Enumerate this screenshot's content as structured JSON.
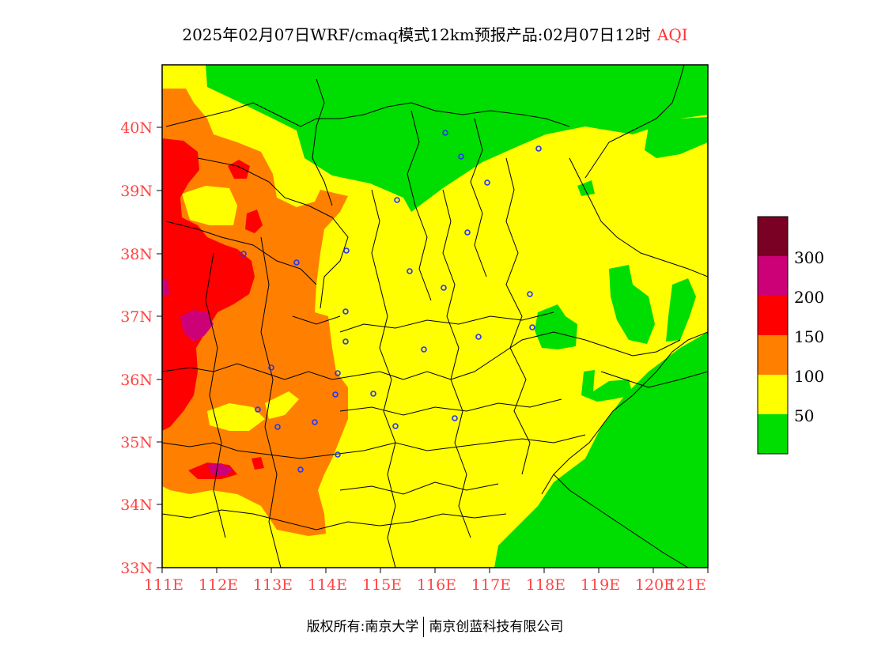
{
  "title": {
    "main": "2025年02月07日WRF/cmaq模式12km预报产品:02月07日12时",
    "tag": "AQI"
  },
  "axes": {
    "lat_labels": [
      "40N",
      "39N",
      "38N",
      "37N",
      "36N",
      "35N",
      "34N",
      "33N"
    ],
    "lon_labels": [
      "111E",
      "112E",
      "113E",
      "114E",
      "115E",
      "116E",
      "117E",
      "118E",
      "119E",
      "120E",
      "121E"
    ],
    "label_color": "#ff4444"
  },
  "legend": {
    "labels": [
      "300",
      "200",
      "150",
      "100",
      "50"
    ],
    "colors": [
      "#7a0024",
      "#cc0077",
      "#ff0000",
      "#ff8000",
      "#ffff00",
      "#00dd00"
    ]
  },
  "footer": {
    "left": "版权所有:南京大学",
    "right": "南京创蓝科技有限公司"
  }
}
